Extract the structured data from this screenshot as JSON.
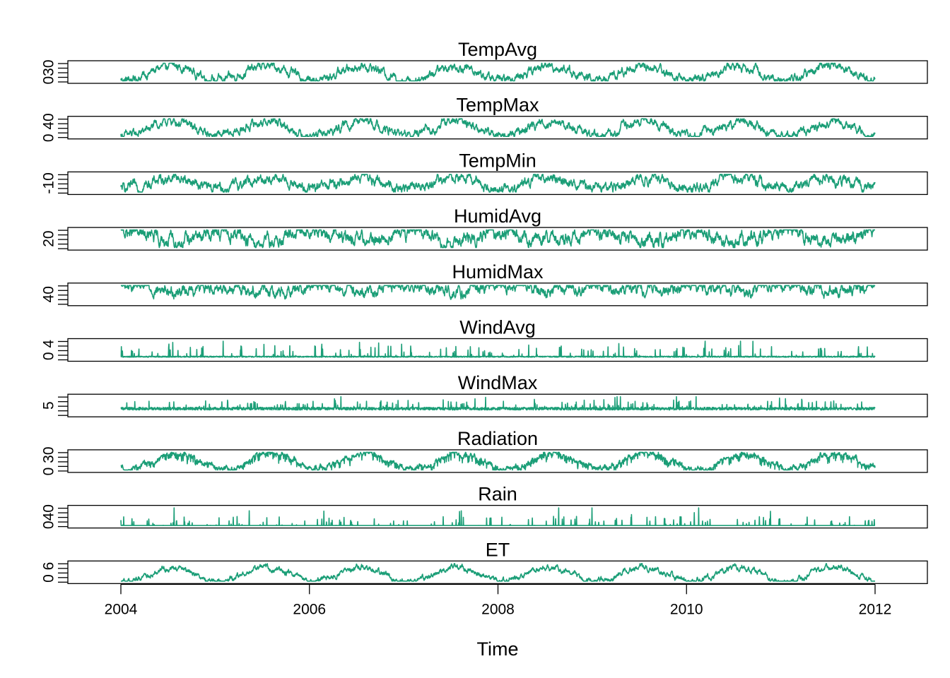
{
  "chart_data": {
    "type": "line",
    "layout": "stacked-panels",
    "xlabel": "Time",
    "xlim": [
      2004,
      2012
    ],
    "x_ticks": [
      {
        "value": 2004,
        "label": "2004"
      },
      {
        "value": 2006,
        "label": "2006"
      },
      {
        "value": 2008,
        "label": "2008"
      },
      {
        "value": 2010,
        "label": "2010"
      },
      {
        "value": 2012,
        "label": "2012"
      }
    ],
    "grid": false,
    "line_color": "#1b9e77",
    "panels": [
      {
        "title": "TempAvg",
        "ytick_label": "030",
        "model": {
          "kind": "seasonal",
          "mean": 0.45,
          "amp": 0.38,
          "noise": 0.12,
          "phase": 0.0
        }
      },
      {
        "title": "TempMax",
        "ytick_label": "0 40",
        "model": {
          "kind": "seasonal",
          "mean": 0.45,
          "amp": 0.38,
          "noise": 0.12,
          "phase": 0.0
        }
      },
      {
        "title": "TempMin",
        "ytick_label": "-10",
        "model": {
          "kind": "seasonal",
          "mean": 0.5,
          "amp": 0.3,
          "noise": 0.14,
          "phase": 0.0
        }
      },
      {
        "title": "HumidAvg",
        "ytick_label": "20",
        "model": {
          "kind": "seasonal",
          "mean": 0.6,
          "amp": 0.25,
          "noise": 0.18,
          "phase": 0.5
        }
      },
      {
        "title": "HumidMax",
        "ytick_label": "40",
        "model": {
          "kind": "seasonal",
          "mean": 0.82,
          "amp": 0.12,
          "noise": 0.16,
          "phase": 0.5
        }
      },
      {
        "title": "WindAvg",
        "ytick_label": "0 4",
        "model": {
          "kind": "spiky",
          "base": 0.12,
          "spike": 0.6,
          "noise": 0.06
        }
      },
      {
        "title": "WindMax",
        "ytick_label": "5",
        "model": {
          "kind": "spiky",
          "base": 0.3,
          "spike": 0.45,
          "noise": 0.15
        }
      },
      {
        "title": "Radiation",
        "ytick_label": "0 30",
        "model": {
          "kind": "seasonal",
          "mean": 0.5,
          "amp": 0.42,
          "noise": 0.08,
          "phase": -0.05,
          "dips": true
        }
      },
      {
        "title": "Rain",
        "ytick_label": "040",
        "model": {
          "kind": "rain",
          "base": 0.02,
          "spike": 0.5
        }
      },
      {
        "title": "ET",
        "ytick_label": "0 6",
        "model": {
          "kind": "seasonal",
          "mean": 0.4,
          "amp": 0.38,
          "noise": 0.08,
          "phase": 0.0
        }
      }
    ]
  }
}
